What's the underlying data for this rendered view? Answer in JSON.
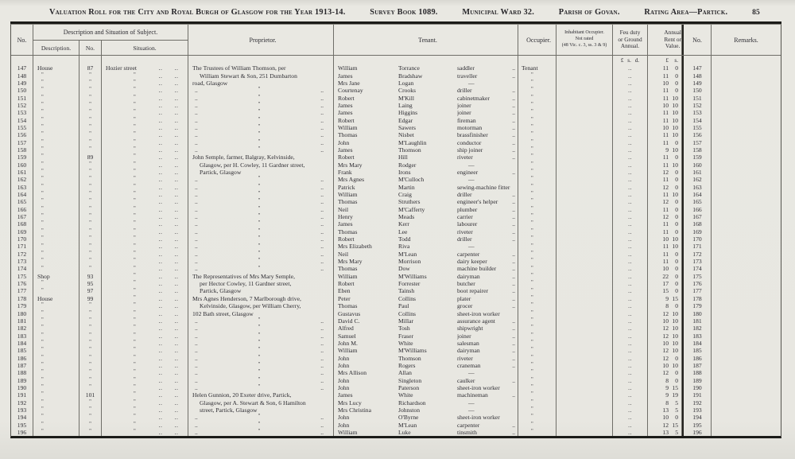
{
  "header": {
    "title": "Valuation Roll for the City and Royal Burgh of Glasgow for the Year 1913-14.",
    "survey_book": "Survey Book 1089.",
    "municipal_ward": "Municipal Ward 32.",
    "parish": "Parish of Govan.",
    "rating_area": "Rating Area—Partick.",
    "page_number": "85"
  },
  "table": {
    "headers": {
      "no_left": "No.",
      "group": "Description and Situation of Subject.",
      "description": "Description.",
      "sub_no": "No.",
      "situation": "Situation.",
      "proprietor": "Proprietor.",
      "tenant": "Tenant.",
      "occupier": "Occupier.",
      "inhabitant": "Inhabitant Occupier.\nNot rated\n(48 Vic. c. 3, ss. 3 & 9)",
      "feu_duty": "Feu duty\nor Ground\nAnnual.",
      "annual_rent": "Annual\nRent or\nValue.",
      "no_right": "No.",
      "remarks": "Remarks."
    },
    "units": {
      "feu": "£ s. d.",
      "rent_pounds": "£",
      "rent_shillings": "s."
    },
    "ditto_mark": "\"",
    "dots": "..",
    "rows": [
      [
        "147",
        "House",
        "87",
        "Hozier street",
        "The Trustees of William Thomson, per",
        0,
        "William",
        "Torrance",
        "saddler",
        1,
        "Tenant",
        "11",
        "0"
      ],
      [
        "148",
        "\"",
        "\"",
        "\"",
        "William Stewart & Son, 251 Dumbarton",
        1,
        "James",
        "Bradshaw",
        "traveller",
        1,
        "\"",
        "11",
        "0"
      ],
      [
        "149",
        "\"",
        "\"",
        "\"",
        "road, Glasgow",
        0,
        "Mrs Jane",
        "Logan",
        "—",
        0,
        "\"",
        "10",
        "0"
      ],
      [
        "150",
        "\"",
        "\"",
        "\"",
        "",
        0,
        "Courtenay",
        "Crooks",
        "driller",
        1,
        "\"",
        "11",
        "0"
      ],
      [
        "151",
        "\"",
        "\"",
        "\"",
        "",
        0,
        "Robert",
        "M'Kill",
        "cabinetmaker",
        1,
        "\"",
        "11",
        "10"
      ],
      [
        "152",
        "\"",
        "\"",
        "\"",
        "",
        0,
        "James",
        "Laing",
        "joiner",
        1,
        "\"",
        "10",
        "10"
      ],
      [
        "153",
        "\"",
        "\"",
        "\"",
        "",
        0,
        "James",
        "Higgins",
        "joiner",
        1,
        "\"",
        "11",
        "10"
      ],
      [
        "154",
        "\"",
        "\"",
        "\"",
        "",
        0,
        "Robert",
        "Edgar",
        "fireman",
        1,
        "\"",
        "11",
        "10"
      ],
      [
        "155",
        "\"",
        "\"",
        "\"",
        "",
        0,
        "William",
        "Sawers",
        "motorman",
        1,
        "\"",
        "10",
        "10"
      ],
      [
        "156",
        "\"",
        "\"",
        "\"",
        "",
        0,
        "Thomas",
        "Nisbet",
        "brassfinisher",
        1,
        "\"",
        "11",
        "10"
      ],
      [
        "157",
        "\"",
        "\"",
        "\"",
        "",
        0,
        "John",
        "M'Laughlin",
        "conductor",
        1,
        "\"",
        "11",
        "0"
      ],
      [
        "158",
        "\"",
        "\"",
        "\"",
        "",
        0,
        "James",
        "Thomson",
        "ship joiner",
        1,
        "\"",
        "9",
        "10"
      ],
      [
        "159",
        "\"",
        "89",
        "\"",
        "John Semple, farmer, Balgray, Kelvinside,",
        0,
        "Robert",
        "Hill",
        "riveter",
        1,
        "\"",
        "11",
        "0"
      ],
      [
        "160",
        "\"",
        "\"",
        "\"",
        "Glasgow, per H. Cowley, 11 Gardner street,",
        1,
        "Mrs Mary",
        "Rodger",
        "—",
        0,
        "\"",
        "11",
        "10"
      ],
      [
        "161",
        "\"",
        "\"",
        "\"",
        "Partick, Glasgow",
        1,
        "Frank",
        "Irons",
        "engineer",
        1,
        "\"",
        "12",
        "0"
      ],
      [
        "162",
        "\"",
        "\"",
        "\"",
        "",
        0,
        "Mrs Agnes",
        "M'Culloch",
        "—",
        0,
        "\"",
        "11",
        "0"
      ],
      [
        "163",
        "\"",
        "\"",
        "\"",
        "",
        0,
        "Patrick",
        "Martin",
        "sewing-machine fitter",
        0,
        "\"",
        "12",
        "0"
      ],
      [
        "164",
        "\"",
        "\"",
        "\"",
        "",
        0,
        "William",
        "Craig",
        "driller",
        1,
        "\"",
        "11",
        "10"
      ],
      [
        "165",
        "\"",
        "\"",
        "\"",
        "",
        0,
        "Thomas",
        "Struthers",
        "engineer's helper",
        1,
        "\"",
        "12",
        "0"
      ],
      [
        "166",
        "\"",
        "\"",
        "\"",
        "",
        0,
        "Neil",
        "M'Cafferty",
        "plumber",
        1,
        "\"",
        "11",
        "0"
      ],
      [
        "167",
        "\"",
        "\"",
        "\"",
        "",
        0,
        "Henry",
        "Meads",
        "carrier",
        1,
        "\"",
        "12",
        "0"
      ],
      [
        "168",
        "\"",
        "\"",
        "\"",
        "",
        0,
        "James",
        "Kerr",
        "labourer",
        1,
        "\"",
        "11",
        "0"
      ],
      [
        "169",
        "\"",
        "\"",
        "\"",
        "",
        0,
        "Thomas",
        "Lee",
        "riveter",
        1,
        "\"",
        "11",
        "0"
      ],
      [
        "170",
        "\"",
        "\"",
        "\"",
        "",
        0,
        "Robert",
        "Todd",
        "driller",
        1,
        "\"",
        "10",
        "10"
      ],
      [
        "171",
        "\"",
        "\"",
        "\"",
        "",
        0,
        "Mrs Elizabeth",
        "Riva",
        "—",
        0,
        "\"",
        "11",
        "10"
      ],
      [
        "172",
        "\"",
        "\"",
        "\"",
        "",
        0,
        "Neil",
        "M'Lean",
        "carpenter",
        1,
        "\"",
        "11",
        "0"
      ],
      [
        "173",
        "\"",
        "\"",
        "\"",
        "",
        0,
        "Mrs Mary",
        "Morrison",
        "dairy keeper",
        1,
        "\"",
        "11",
        "0"
      ],
      [
        "174",
        "\"",
        "\"",
        "\"",
        "",
        0,
        "Thomas",
        "Dow",
        "machine builder",
        1,
        "\"",
        "10",
        "0"
      ],
      [
        "175",
        "Shop",
        "93",
        "\"",
        "The Representatives of Mrs Mary Semple,",
        0,
        "William",
        "M'Williams",
        "dairyman",
        1,
        "\"",
        "22",
        "0"
      ],
      [
        "176",
        "\"",
        "95",
        "\"",
        "per Hector Cowley, 11 Gardner street,",
        1,
        "Robert",
        "Forrester",
        "butcher",
        1,
        "\"",
        "17",
        "0"
      ],
      [
        "177",
        "\"",
        "97",
        "\"",
        "Partick, Glasgow",
        1,
        "Eben",
        "Tainsh",
        "boot repairer",
        1,
        "\"",
        "15",
        "0"
      ],
      [
        "178",
        "House",
        "99",
        "\"",
        "Mrs Agnes Henderson, 7 Marlborough drive,",
        0,
        "Peter",
        "Collins",
        "plater",
        1,
        "\"",
        "9",
        "15"
      ],
      [
        "179",
        "\"",
        "\"",
        "\"",
        "Kelvinside, Glasgow, per William Cherry,",
        1,
        "Thomas",
        "Paul",
        "grocer",
        1,
        "\"",
        "8",
        "0"
      ],
      [
        "180",
        "\"",
        "\"",
        "\"",
        "102 Bath street, Glasgow",
        0,
        "Gustavus",
        "Collins",
        "sheet-iron worker",
        0,
        "\"",
        "12",
        "10"
      ],
      [
        "181",
        "\"",
        "\"",
        "\"",
        "",
        0,
        "David C.",
        "Millar",
        "assurance agent",
        1,
        "\"",
        "10",
        "10"
      ],
      [
        "182",
        "\"",
        "\"",
        "\"",
        "",
        0,
        "Alfred",
        "Tosh",
        "shipwright",
        1,
        "\"",
        "12",
        "10"
      ],
      [
        "183",
        "\"",
        "\"",
        "\"",
        "",
        0,
        "Samuel",
        "Fraser",
        "joiner",
        1,
        "\"",
        "12",
        "10"
      ],
      [
        "184",
        "\"",
        "\"",
        "\"",
        "",
        0,
        "John M.",
        "White",
        "salesman",
        1,
        "\"",
        "10",
        "10"
      ],
      [
        "185",
        "\"",
        "\"",
        "\"",
        "",
        0,
        "William",
        "M'Williams",
        "dairyman",
        1,
        "\"",
        "12",
        "10"
      ],
      [
        "186",
        "\"",
        "\"",
        "\"",
        "",
        0,
        "John",
        "Thomson",
        "riveter",
        1,
        "\"",
        "12",
        "0"
      ],
      [
        "187",
        "\"",
        "\"",
        "\"",
        "",
        0,
        "John",
        "Rogers",
        "craneman",
        1,
        "\"",
        "10",
        "10"
      ],
      [
        "188",
        "\"",
        "\"",
        "\"",
        "",
        0,
        "Mrs Allison",
        "Allan",
        "—",
        0,
        "\"",
        "12",
        "0"
      ],
      [
        "189",
        "\"",
        "\"",
        "\"",
        "",
        0,
        "John",
        "Singleton",
        "caulker",
        1,
        "\"",
        "8",
        "0"
      ],
      [
        "190",
        "\"",
        "\"",
        "\"",
        "",
        0,
        "John",
        "Paterson",
        "sheet-iron worker",
        0,
        "\"",
        "9",
        "15"
      ],
      [
        "191",
        "\"",
        "101",
        "\"",
        "Helen Gunnion, 20 Exeter drive, Partick,",
        0,
        "James",
        "White",
        "machineman",
        1,
        "\"",
        "9",
        "19"
      ],
      [
        "192",
        "\"",
        "\"",
        "\"",
        "Glasgow, per A. Stewart & Son, 6 Hamilton",
        1,
        "Mrs Lucy",
        "Richardson",
        "—",
        0,
        "\"",
        "8",
        "5"
      ],
      [
        "193",
        "\"",
        "\"",
        "\"",
        "street, Partick, Glasgow",
        1,
        "Mrs Christina",
        "Johnston",
        "—",
        0,
        "\"",
        "13",
        "5"
      ],
      [
        "194",
        "\"",
        "\"",
        "\"",
        "",
        0,
        "John",
        "O'Byrne",
        "sheet-iron worker",
        0,
        "\"",
        "10",
        "0"
      ],
      [
        "195",
        "\"",
        "\"",
        "\"",
        "",
        0,
        "John",
        "M'Lean",
        "carpenter",
        1,
        "\"",
        "12",
        "15"
      ],
      [
        "196",
        "\"",
        "\"",
        "\"",
        "",
        0,
        "William",
        "Luke",
        "tinsmith",
        1,
        "\"",
        "13",
        "5"
      ]
    ]
  }
}
